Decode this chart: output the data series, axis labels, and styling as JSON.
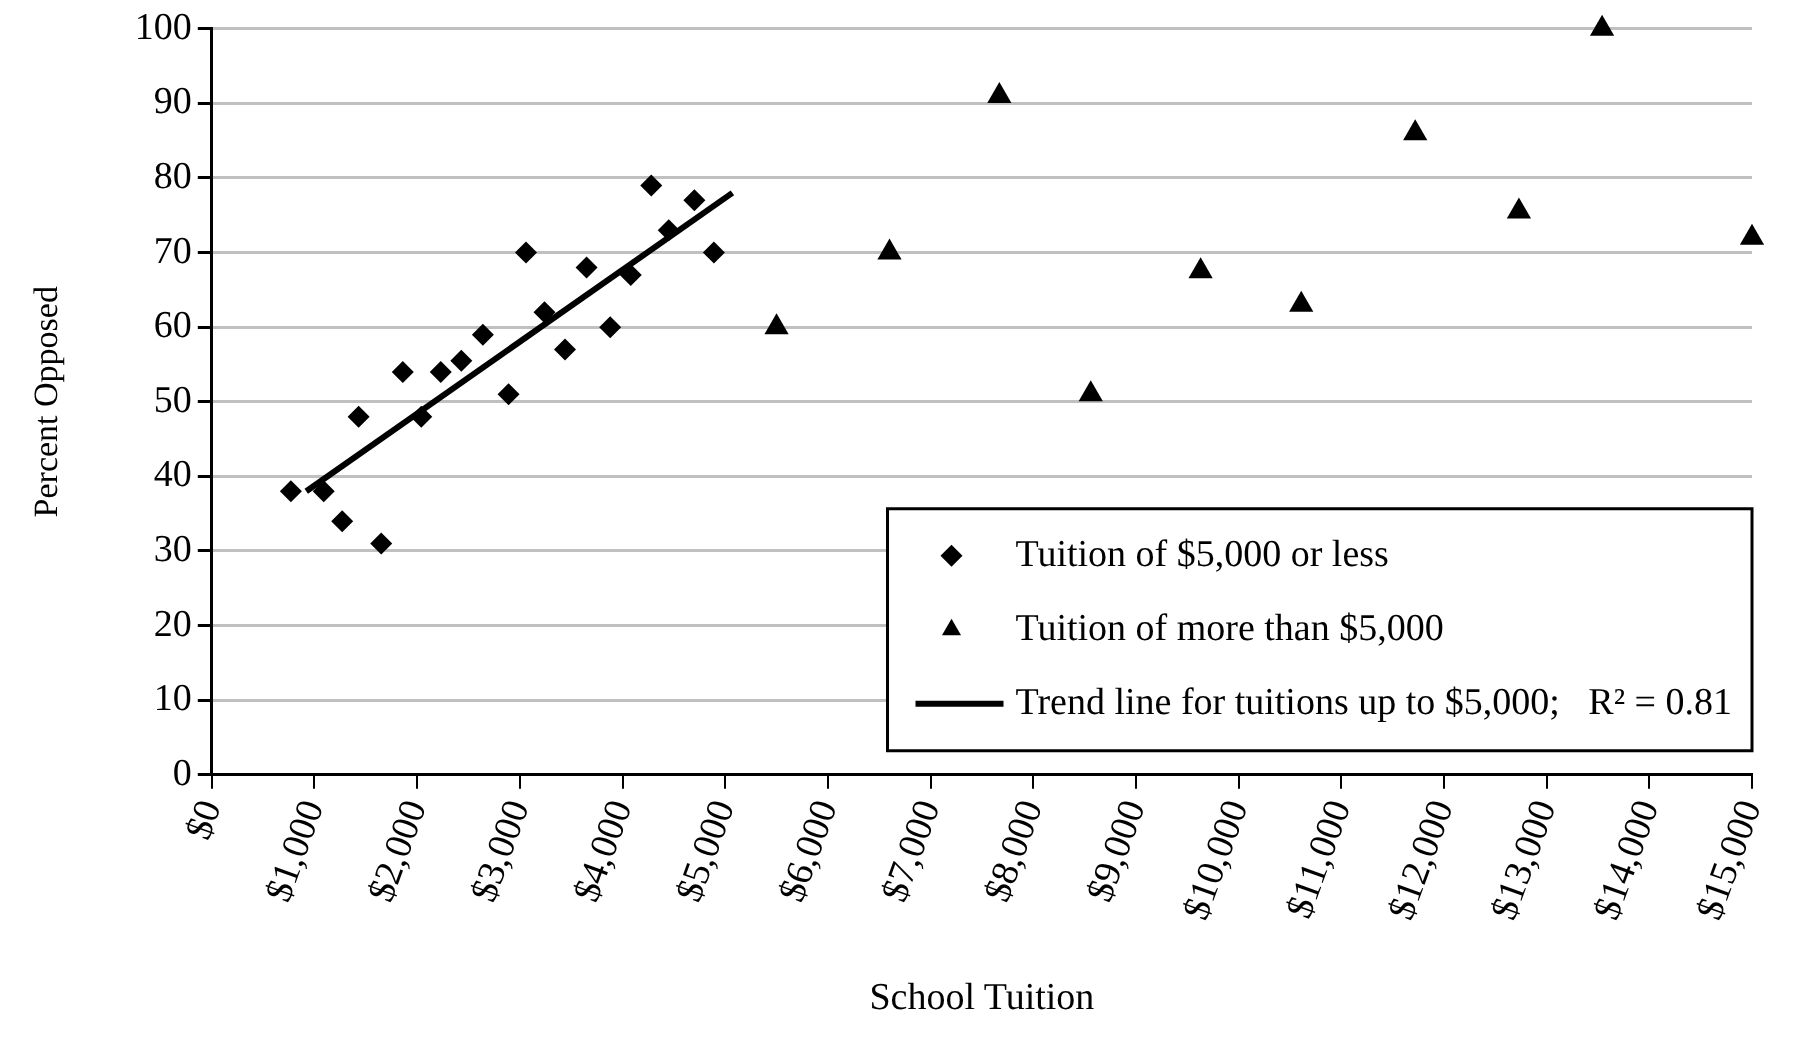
{
  "chart_data": {
    "type": "scatter",
    "xlabel": "School Tuition",
    "ylabel": "Percent Opposed",
    "xlim": [
      0,
      15000
    ],
    "xticks": [
      {
        "value": 0,
        "label": "$0"
      },
      {
        "value": 1000,
        "label": "$1,000"
      },
      {
        "value": 2000,
        "label": "$2,000"
      },
      {
        "value": 3000,
        "label": "$3,000"
      },
      {
        "value": 4000,
        "label": "$4,000"
      },
      {
        "value": 5000,
        "label": "$5,000"
      },
      {
        "value": 6000,
        "label": "$6,000"
      },
      {
        "value": 7000,
        "label": "$7,000"
      },
      {
        "value": 8000,
        "label": "$8,000"
      },
      {
        "value": 9000,
        "label": "$9,000"
      },
      {
        "value": 10000,
        "label": "$10,000"
      },
      {
        "value": 11000,
        "label": "$11,000"
      },
      {
        "value": 12000,
        "label": "$12,000"
      },
      {
        "value": 13000,
        "label": "$13,000"
      },
      {
        "value": 14000,
        "label": "$14,000"
      },
      {
        "value": 15000,
        "label": "$15,000"
      }
    ],
    "ylim": [
      0,
      100
    ],
    "yticks": [
      0,
      10,
      20,
      30,
      40,
      50,
      60,
      70,
      80,
      90,
      100
    ],
    "grid": "y",
    "legend": "bottom right",
    "series": [
      {
        "name": "Tuition of $5,000 or less",
        "type": "scatter",
        "marker": "diamond",
        "color": "#000000",
        "x": [
          770,
          1090,
          1270,
          1650,
          1430,
          1860,
          2040,
          2230,
          2430,
          2640,
          2890,
          3060,
          3240,
          3440,
          3650,
          3880,
          4080,
          4280,
          4450,
          4700,
          4890
        ],
        "values": [
          38,
          38,
          34,
          31,
          48,
          54,
          48,
          54,
          55.5,
          59,
          51,
          70,
          62,
          57,
          68,
          60,
          67,
          79,
          73,
          77,
          70
        ]
      },
      {
        "name": "Tuition of more than $5,000",
        "type": "scatter",
        "marker": "triangle",
        "color": "#000000",
        "x": [
          5500,
          6600,
          7670,
          8560,
          9630,
          10610,
          11720,
          12730,
          13540,
          15000
        ],
        "values": [
          60,
          70,
          91,
          51,
          67.5,
          63,
          86,
          75.5,
          100,
          72
        ]
      },
      {
        "name": "Trend line for tuitions up to $5,000;   R² = 0.81",
        "type": "line",
        "marker": "none",
        "line_style": "solid",
        "color": "#000000",
        "x": [
          920,
          5070
        ],
        "values": [
          38,
          78
        ]
      }
    ]
  }
}
